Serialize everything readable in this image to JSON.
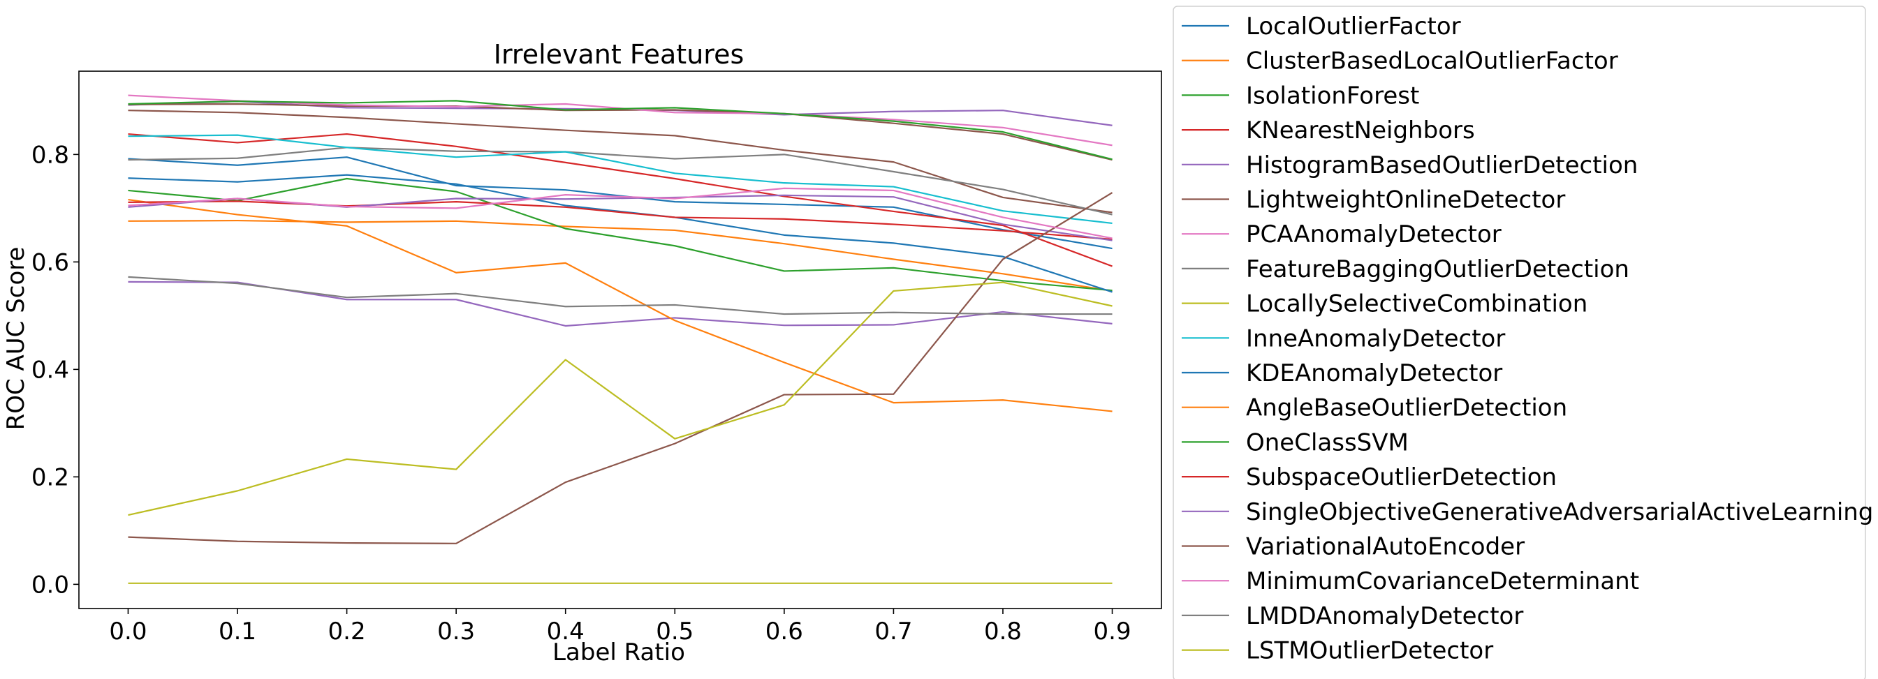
{
  "chart_data": {
    "type": "line",
    "title": "Irrelevant Features",
    "xlabel": "Label Ratio",
    "ylabel": "ROC AUC Score",
    "x": [
      0.0,
      0.1,
      0.2,
      0.3,
      0.4,
      0.5,
      0.6,
      0.7,
      0.8,
      0.9
    ],
    "xticks": [
      "0.0",
      "0.1",
      "0.2",
      "0.3",
      "0.4",
      "0.5",
      "0.6",
      "0.7",
      "0.8",
      "0.9"
    ],
    "yticks": [
      "0.0",
      "0.2",
      "0.4",
      "0.6",
      "0.8"
    ],
    "xlim": [
      -0.045,
      0.945
    ],
    "ylim": [
      -0.045,
      0.955
    ],
    "grid": false,
    "legend_position": "outside-right",
    "series": [
      {
        "name": "LocalOutlierFactor",
        "color": "#1f77b4",
        "values": [
          0.792,
          0.78,
          0.795,
          0.742,
          0.734,
          0.712,
          0.707,
          0.702,
          0.66,
          0.625
        ]
      },
      {
        "name": "ClusterBasedLocalOutlierFactor",
        "color": "#ff7f0e",
        "values": [
          0.676,
          0.677,
          0.674,
          0.676,
          0.666,
          0.659,
          0.634,
          0.605,
          0.578,
          0.546
        ]
      },
      {
        "name": "IsolationForest",
        "color": "#2ca02c",
        "values": [
          0.733,
          0.714,
          0.755,
          0.731,
          0.662,
          0.63,
          0.583,
          0.589,
          0.565,
          0.547
        ]
      },
      {
        "name": "KNearestNeighbors",
        "color": "#d62728",
        "values": [
          0.838,
          0.822,
          0.838,
          0.815,
          0.785,
          0.755,
          0.722,
          0.694,
          0.668,
          0.592
        ]
      },
      {
        "name": "HistogramBasedOutlierDetection",
        "color": "#9467bd",
        "values": [
          0.563,
          0.562,
          0.53,
          0.53,
          0.481,
          0.496,
          0.482,
          0.483,
          0.507,
          0.485
        ]
      },
      {
        "name": "LightweightOnlineDetector",
        "color": "#8c564b",
        "values": [
          0.882,
          0.878,
          0.869,
          0.857,
          0.845,
          0.835,
          0.808,
          0.786,
          0.72,
          0.692
        ]
      },
      {
        "name": "PCAAnomalyDetector",
        "color": "#e377c2",
        "values": [
          0.91,
          0.9,
          0.892,
          0.889,
          0.894,
          0.878,
          0.876,
          0.865,
          0.85,
          0.817
        ]
      },
      {
        "name": "FeatureBaggingOutlierDetection",
        "color": "#7f7f7f",
        "values": [
          0.79,
          0.793,
          0.813,
          0.806,
          0.805,
          0.792,
          0.8,
          0.768,
          0.735,
          0.688
        ]
      },
      {
        "name": "LocallySelectiveCombination",
        "color": "#bcbd22",
        "values": [
          0.002,
          0.002,
          0.002,
          0.002,
          0.002,
          0.002,
          0.002,
          0.002,
          0.002,
          0.002
        ]
      },
      {
        "name": "InneAnomalyDetector",
        "color": "#17becf",
        "values": [
          0.834,
          0.836,
          0.813,
          0.795,
          0.805,
          0.765,
          0.747,
          0.74,
          0.695,
          0.672
        ]
      },
      {
        "name": "KDEAnomalyDetector",
        "color": "#1f77b4",
        "values": [
          0.756,
          0.749,
          0.762,
          0.745,
          0.705,
          0.683,
          0.65,
          0.635,
          0.61,
          0.544
        ]
      },
      {
        "name": "AngleBaseOutlierDetection",
        "color": "#ff7f0e",
        "values": [
          0.716,
          0.688,
          0.667,
          0.58,
          0.598,
          0.491,
          0.413,
          0.338,
          0.343,
          0.322
        ]
      },
      {
        "name": "OneClassSVM",
        "color": "#2ca02c",
        "values": [
          0.894,
          0.899,
          0.896,
          0.9,
          0.883,
          0.887,
          0.876,
          0.862,
          0.842,
          0.791
        ]
      },
      {
        "name": "SubspaceOutlierDetection",
        "color": "#d62728",
        "values": [
          0.711,
          0.713,
          0.704,
          0.712,
          0.702,
          0.683,
          0.68,
          0.67,
          0.658,
          0.642
        ]
      },
      {
        "name": "SingleObjectiveGenerativeAdversarialActiveLearning",
        "color": "#9467bd",
        "values": [
          0.702,
          0.718,
          0.702,
          0.718,
          0.717,
          0.72,
          0.724,
          0.721,
          0.67,
          0.64
        ]
      },
      {
        "name": "VariationalAutoEncoder",
        "color": "#8c564b",
        "values": [
          0.088,
          0.08,
          0.077,
          0.076,
          0.19,
          0.262,
          0.353,
          0.354,
          0.605,
          0.729
        ]
      },
      {
        "name": "MinimumCovarianceDeterminant",
        "color": "#e377c2",
        "values": [
          0.705,
          0.718,
          0.703,
          0.7,
          0.725,
          0.718,
          0.737,
          0.733,
          0.683,
          0.644
        ]
      },
      {
        "name": "LMDDAnomalyDetector",
        "color": "#7f7f7f",
        "values": [
          0.572,
          0.56,
          0.534,
          0.541,
          0.517,
          0.52,
          0.503,
          0.506,
          0.503,
          0.503
        ]
      },
      {
        "name": "LSTMOutlierDetector",
        "color": "#bcbd22",
        "values": [
          0.129,
          0.174,
          0.233,
          0.214,
          0.418,
          0.271,
          0.334,
          0.546,
          0.562,
          0.518
        ]
      }
    ],
    "extra_lines_not_in_legend": [
      {
        "color": "#9467bd",
        "values": [
          0.892,
          0.899,
          0.887,
          0.886,
          0.885,
          0.882,
          0.874,
          0.88,
          0.882,
          0.854
        ]
      },
      {
        "color": "#8c564b",
        "values": [
          0.893,
          0.894,
          0.89,
          0.89,
          0.882,
          0.883,
          0.876,
          0.858,
          0.838,
          0.79
        ]
      }
    ]
  }
}
